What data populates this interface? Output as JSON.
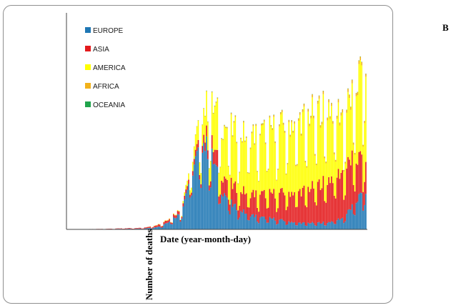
{
  "panel_label": "B",
  "colors": {
    "EUROPE": "#1f77b4",
    "ASIA": "#e31a1c",
    "AMERICA": "#ffff00",
    "AFRICA": "#f2b21b",
    "OCEANIA": "#21a44c",
    "axis": "#444444"
  },
  "chart_data": {
    "type": "bar",
    "stacked": true,
    "title": "",
    "xlabel": "Date (year-month-day)",
    "ylabel": "Number of deaths",
    "grid": false,
    "legend_position": "top-left",
    "legend": [
      "EUROPE",
      "ASIA",
      "AMERICA",
      "AFRICA",
      "OCEANIA"
    ],
    "n_days": 218,
    "keypoints": {
      "day": [
        0,
        30,
        55,
        68,
        82,
        90,
        98,
        104,
        108,
        112,
        120,
        130,
        140,
        150,
        160,
        170,
        180,
        190,
        200,
        207,
        212,
        217
      ],
      "EUROPE": [
        0,
        0.5,
        1,
        4,
        20,
        70,
        110,
        95,
        75,
        50,
        30,
        20,
        15,
        13,
        10,
        8,
        8,
        9,
        14,
        28,
        40,
        50
      ],
      "ASIA": [
        0,
        0.3,
        1,
        3,
        4,
        6,
        10,
        14,
        18,
        20,
        24,
        26,
        29,
        32,
        36,
        40,
        46,
        54,
        58,
        60,
        48,
        45
      ],
      "AMERICA": [
        0,
        0,
        0,
        0.5,
        1,
        10,
        30,
        45,
        55,
        60,
        70,
        70,
        75,
        80,
        85,
        88,
        92,
        90,
        70,
        75,
        100,
        120
      ],
      "AFRICA": [
        0,
        0,
        0,
        0,
        0,
        0.2,
        0.5,
        0.8,
        1,
        1.2,
        1.5,
        1.6,
        1.8,
        2,
        2.4,
        2.8,
        3.2,
        3.5,
        3.6,
        3.8,
        4,
        4
      ],
      "OCEANIA": [
        0,
        0,
        0,
        0,
        0,
        0.1,
        0.2,
        0.3,
        0.3,
        0.3,
        0.3,
        0.3,
        0.3,
        0.3,
        0.3,
        0.3,
        0.3,
        0.3,
        0.3,
        0.3,
        0.3,
        0.3
      ]
    },
    "weekly_dip_factor": 0.55,
    "ylim": [
      0,
      250
    ]
  }
}
